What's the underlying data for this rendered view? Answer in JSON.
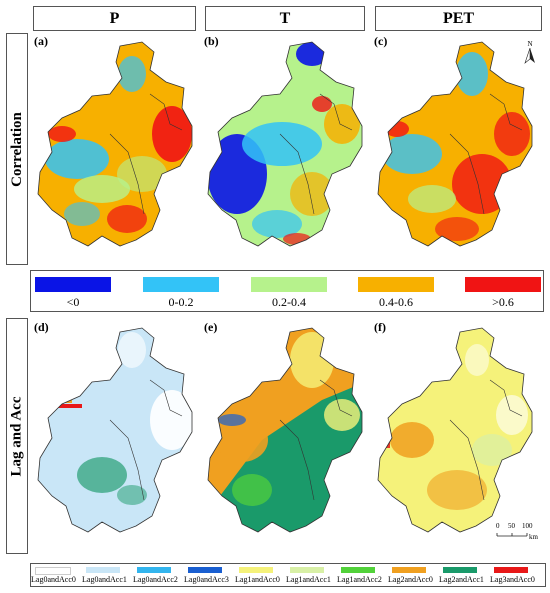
{
  "columns": [
    {
      "title": "P"
    },
    {
      "title": "T"
    },
    {
      "title": "PET"
    }
  ],
  "rows": [
    {
      "title": "Correlation"
    },
    {
      "title": "Lag and Acc"
    }
  ],
  "panels": {
    "a": {
      "label": "(a)",
      "variable": "P",
      "metric": "Correlation"
    },
    "b": {
      "label": "(b)",
      "variable": "T",
      "metric": "Correlation"
    },
    "c": {
      "label": "(c)",
      "variable": "PET",
      "metric": "Correlation"
    },
    "d": {
      "label": "(d)",
      "variable": "P",
      "metric": "Lag and Acc"
    },
    "e": {
      "label": "(e)",
      "variable": "T",
      "metric": "Lag and Acc"
    },
    "f": {
      "label": "(f)",
      "variable": "PET",
      "metric": "Lag and Acc"
    }
  },
  "correlation_legend": [
    {
      "label": "<0",
      "color": "#0a14e6"
    },
    {
      "label": "0-0.2",
      "color": "#33c3f7"
    },
    {
      "label": "0.2-0.4",
      "color": "#b6f28c"
    },
    {
      "label": "0.4-0.6",
      "color": "#f7b000"
    },
    {
      "label": ">0.6",
      "color": "#f01414"
    }
  ],
  "lag_legend": [
    {
      "label": "Lag0andAcc0",
      "color": "#ffffff"
    },
    {
      "label": "Lag0andAcc1",
      "color": "#c9e6f7"
    },
    {
      "label": "Lag0andAcc2",
      "color": "#33b5ee"
    },
    {
      "label": "Lag0andAcc3",
      "color": "#1a5fd1"
    },
    {
      "label": "Lag1andAcc0",
      "color": "#f5f27a"
    },
    {
      "label": "Lag1andAcc1",
      "color": "#d8f0a6"
    },
    {
      "label": "Lag1andAcc2",
      "color": "#52d23a"
    },
    {
      "label": "Lag2andAcc0",
      "color": "#f0a020"
    },
    {
      "label": "Lag2andAcc1",
      "color": "#1a9a6a"
    },
    {
      "label": "Lag3andAcc0",
      "color": "#e81818"
    }
  ],
  "north_arrow": {
    "label": "N"
  },
  "scale_bar": {
    "ticks": [
      "0",
      "50",
      "100"
    ],
    "unit": "km"
  }
}
